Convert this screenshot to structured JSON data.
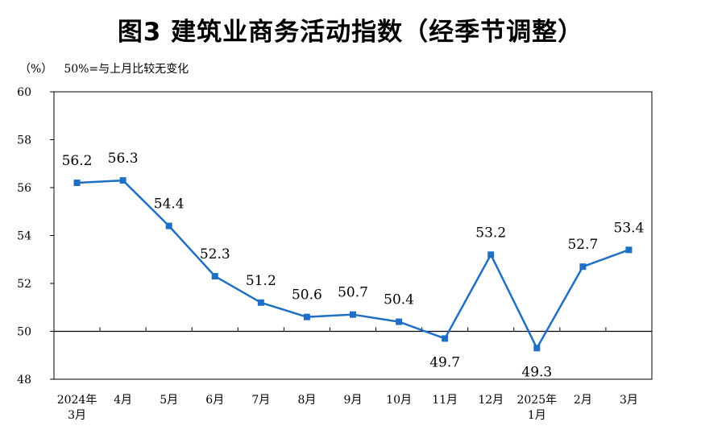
{
  "chart_data": {
    "type": "line",
    "title": "图3  建筑业商务活动指数（经季节调整）",
    "unit_label": "（%）",
    "note": "50%=与上月比较无变化",
    "categories": [
      [
        "2024年",
        "3月"
      ],
      [
        "4月"
      ],
      [
        "5月"
      ],
      [
        "6月"
      ],
      [
        "7月"
      ],
      [
        "8月"
      ],
      [
        "9月"
      ],
      [
        "10月"
      ],
      [
        "11月"
      ],
      [
        "12月"
      ],
      [
        "2025年",
        "1月"
      ],
      [
        "2月"
      ],
      [
        "3月"
      ]
    ],
    "values": [
      56.2,
      56.3,
      54.4,
      52.3,
      51.2,
      50.6,
      50.7,
      50.4,
      49.7,
      53.2,
      49.3,
      52.7,
      53.4
    ],
    "data_labels": [
      "56.2",
      "56.3",
      "54.4",
      "52.3",
      "51.2",
      "50.6",
      "50.7",
      "50.4",
      "49.7",
      "53.2",
      "49.3",
      "52.7",
      "53.4"
    ],
    "label_below": [
      false,
      false,
      false,
      false,
      false,
      false,
      false,
      false,
      true,
      false,
      true,
      false,
      false
    ],
    "ylim": [
      48,
      60
    ],
    "yticks": [
      "48",
      "50",
      "52",
      "54",
      "56",
      "58",
      "60"
    ],
    "reference_line": 50,
    "series_color": "#1f6fc5"
  }
}
